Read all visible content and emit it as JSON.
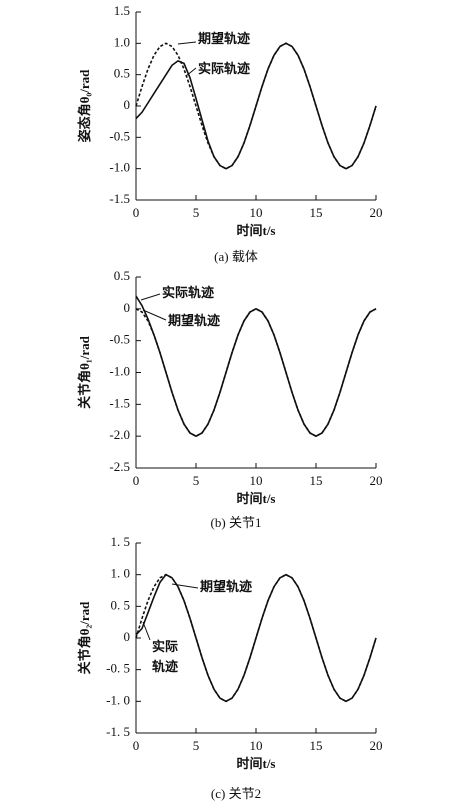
{
  "chart_data": [
    {
      "type": "line",
      "caption": "(a) 载体",
      "xlabel": "时间t/s",
      "ylabel": "姿态角θ₀/rad",
      "xlim": [
        0,
        20
      ],
      "xticks": [
        0,
        5,
        10,
        15,
        20
      ],
      "ylim": [
        -1.5,
        1.5
      ],
      "yticks": [
        -1.5,
        {
          "value": -1,
          "label": "-1.0"
        },
        -0.5,
        0,
        0.5,
        {
          "value": 1,
          "label": "1.0"
        },
        1.5
      ],
      "annotations": [
        "期望轨迹",
        "实际轨迹"
      ],
      "x": [
        0,
        0.5,
        1,
        1.5,
        2,
        2.5,
        3,
        3.5,
        4,
        4.5,
        5,
        5.5,
        6,
        6.5,
        7,
        7.5,
        8,
        8.5,
        9,
        9.5,
        10,
        10.5,
        11,
        11.5,
        12,
        12.5,
        13,
        13.5,
        14,
        14.5,
        15,
        15.5,
        16,
        16.5,
        17,
        17.5,
        18,
        18.5,
        19,
        19.5,
        20
      ],
      "series": [
        {
          "color": "#111111",
          "linestyle": "dashed",
          "values": [
            0,
            0.31,
            0.59,
            0.81,
            0.95,
            1,
            0.95,
            0.81,
            0.59,
            0.31,
            0,
            -0.31,
            -0.59,
            -0.81,
            -0.95,
            -1,
            -0.95,
            -0.81,
            -0.59,
            -0.31,
            0,
            0.31,
            0.59,
            0.81,
            0.95,
            1,
            0.95,
            0.81,
            0.59,
            0.31,
            0,
            -0.31,
            -0.59,
            -0.81,
            -0.95,
            -1,
            -0.95,
            -0.81,
            -0.59,
            -0.31,
            0
          ]
        },
        {
          "color": "#111111",
          "linestyle": "solid",
          "values": [
            -0.2,
            -0.1,
            0.05,
            0.2,
            0.35,
            0.5,
            0.65,
            0.72,
            0.68,
            0.45,
            0.12,
            -0.22,
            -0.56,
            -0.81,
            -0.95,
            -1,
            -0.95,
            -0.81,
            -0.59,
            -0.31,
            0,
            0.31,
            0.59,
            0.81,
            0.95,
            1,
            0.95,
            0.81,
            0.59,
            0.31,
            0,
            -0.31,
            -0.59,
            -0.81,
            -0.95,
            -1,
            -0.95,
            -0.81,
            -0.59,
            -0.31,
            0
          ]
        }
      ]
    },
    {
      "type": "line",
      "caption": "(b) 关节1",
      "xlabel": "时间t/s",
      "ylabel": "关节角θ₁/rad",
      "xlim": [
        0,
        20
      ],
      "xticks": [
        0,
        5,
        10,
        15,
        20
      ],
      "ylim": [
        -2.5,
        0.5
      ],
      "yticks": [
        -2.5,
        {
          "value": -2,
          "label": "-2.0"
        },
        -1.5,
        {
          "value": -1,
          "label": "-1.0"
        },
        -0.5,
        0,
        0.5
      ],
      "annotations": [
        "实际轨迹",
        "期望轨迹"
      ],
      "x": [
        0,
        0.5,
        1,
        1.5,
        2,
        2.5,
        3,
        3.5,
        4,
        4.5,
        5,
        5.5,
        6,
        6.5,
        7,
        7.5,
        8,
        8.5,
        9,
        9.5,
        10,
        10.5,
        11,
        11.5,
        12,
        12.5,
        13,
        13.5,
        14,
        14.5,
        15,
        15.5,
        16,
        16.5,
        17,
        17.5,
        18,
        18.5,
        19,
        19.5,
        20
      ],
      "series": [
        {
          "color": "#111111",
          "linestyle": "dashed",
          "values": [
            0,
            -0.05,
            -0.19,
            -0.41,
            -0.69,
            -1,
            -1.31,
            -1.59,
            -1.81,
            -1.95,
            -2,
            -1.95,
            -1.81,
            -1.59,
            -1.31,
            -1,
            -0.69,
            -0.41,
            -0.19,
            -0.05,
            0,
            -0.05,
            -0.19,
            -0.41,
            -0.69,
            -1,
            -1.31,
            -1.59,
            -1.81,
            -1.95,
            -2,
            -1.95,
            -1.81,
            -1.59,
            -1.31,
            -1,
            -0.69,
            -0.41,
            -0.19,
            -0.05,
            0
          ]
        },
        {
          "color": "#111111",
          "linestyle": "solid",
          "values": [
            0.2,
            0.05,
            -0.16,
            -0.41,
            -0.69,
            -1,
            -1.31,
            -1.59,
            -1.81,
            -1.95,
            -2,
            -1.95,
            -1.81,
            -1.59,
            -1.31,
            -1,
            -0.69,
            -0.41,
            -0.19,
            -0.05,
            0,
            -0.05,
            -0.19,
            -0.41,
            -0.69,
            -1,
            -1.31,
            -1.59,
            -1.81,
            -1.95,
            -2,
            -1.95,
            -1.81,
            -1.59,
            -1.31,
            -1,
            -0.69,
            -0.41,
            -0.19,
            -0.05,
            0
          ]
        }
      ]
    },
    {
      "type": "line",
      "caption": "(c) 关节2",
      "xlabel": "时间t/s",
      "ylabel": "关节角θ₂/rad",
      "xlim": [
        0,
        20
      ],
      "xticks": [
        0,
        5,
        10,
        15,
        20
      ],
      "ylim": [
        -1.5,
        1.5
      ],
      "yticks": [
        {
          "value": -1.5,
          "label": "-1. 5"
        },
        {
          "value": -1,
          "label": "-1. 0"
        },
        {
          "value": -0.5,
          "label": "-0. 5"
        },
        0,
        {
          "value": 0.5,
          "label": "0. 5"
        },
        {
          "value": 1,
          "label": "1. 0"
        },
        {
          "value": 1.5,
          "label": "1. 5"
        }
      ],
      "annotations": [
        "期望轨迹",
        "实际",
        "轨迹"
      ],
      "x": [
        0,
        0.5,
        1,
        1.5,
        2,
        2.5,
        3,
        3.5,
        4,
        4.5,
        5,
        5.5,
        6,
        6.5,
        7,
        7.5,
        8,
        8.5,
        9,
        9.5,
        10,
        10.5,
        11,
        11.5,
        12,
        12.5,
        13,
        13.5,
        14,
        14.5,
        15,
        15.5,
        16,
        16.5,
        17,
        17.5,
        18,
        18.5,
        19,
        19.5,
        20
      ],
      "series": [
        {
          "color": "#111111",
          "linestyle": "dashed",
          "values": [
            0,
            0.31,
            0.59,
            0.81,
            0.95,
            1,
            0.95,
            0.81,
            0.59,
            0.31,
            0,
            -0.31,
            -0.59,
            -0.81,
            -0.95,
            -1,
            -0.95,
            -0.81,
            -0.59,
            -0.31,
            0,
            0.31,
            0.59,
            0.81,
            0.95,
            1,
            0.95,
            0.81,
            0.59,
            0.31,
            0,
            -0.31,
            -0.59,
            -0.81,
            -0.95,
            -1,
            -0.95,
            -0.81,
            -0.59,
            -0.31,
            0
          ]
        },
        {
          "color": "#111111",
          "linestyle": "solid",
          "values": [
            0.05,
            0.15,
            0.4,
            0.65,
            0.88,
            1,
            0.95,
            0.81,
            0.59,
            0.31,
            0,
            -0.31,
            -0.59,
            -0.81,
            -0.95,
            -1,
            -0.95,
            -0.81,
            -0.59,
            -0.31,
            0,
            0.31,
            0.59,
            0.81,
            0.95,
            1,
            0.95,
            0.81,
            0.59,
            0.31,
            0,
            -0.31,
            -0.59,
            -0.81,
            -0.95,
            -1,
            -0.95,
            -0.81,
            -0.59,
            -0.31,
            0
          ]
        }
      ]
    }
  ]
}
